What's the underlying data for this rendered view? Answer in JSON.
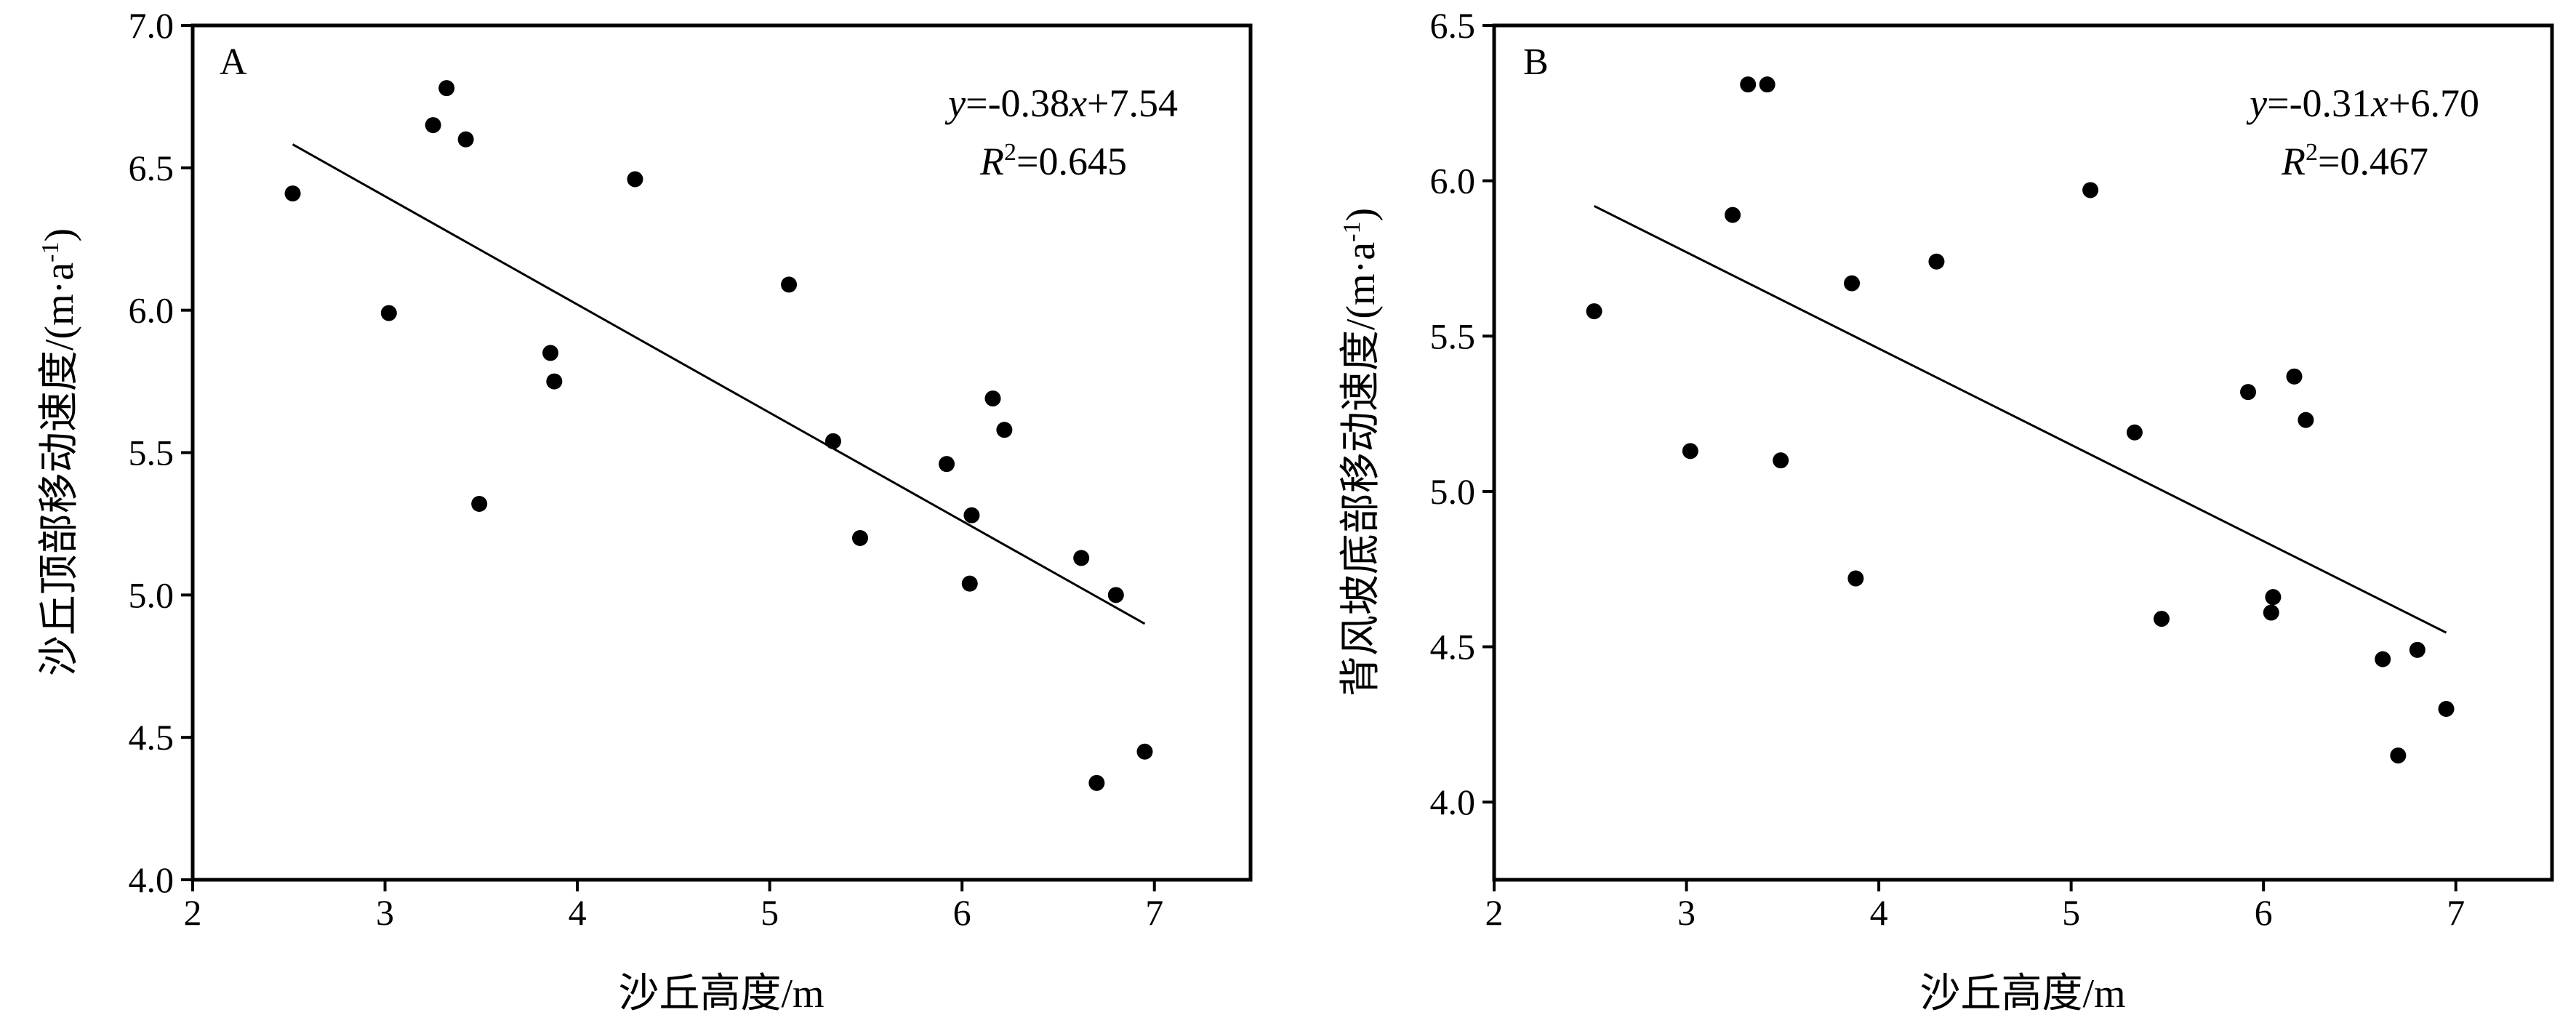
{
  "chart_data": [
    {
      "type": "scatter",
      "panel_label": "A",
      "xlabel": "沙丘高度/m",
      "ylabel_main": "沙丘顶部移动速度/(m·a",
      "ylabel_sup": "-1",
      "ylabel_end": ")",
      "xlim": [
        2,
        7.5
      ],
      "ylim": [
        4.0,
        7.0
      ],
      "xticks": [
        "2",
        "3",
        "4",
        "5",
        "6",
        "7"
      ],
      "yticks": [
        "4.0",
        "4.5",
        "5.0",
        "5.5",
        "6.0",
        "6.5",
        "7.0"
      ],
      "x": [
        2.52,
        3.02,
        3.25,
        3.32,
        3.42,
        3.49,
        3.86,
        3.88,
        4.3,
        5.1,
        5.33,
        5.47,
        5.92,
        6.04,
        6.05,
        6.16,
        6.22,
        6.62,
        6.7,
        6.8,
        6.95
      ],
      "y": [
        6.41,
        5.99,
        6.65,
        6.78,
        6.6,
        5.32,
        5.85,
        5.75,
        6.46,
        6.09,
        5.54,
        5.2,
        5.46,
        5.04,
        5.28,
        5.69,
        5.58,
        5.13,
        4.34,
        5.0,
        4.45
      ],
      "fit": {
        "slope": -0.38,
        "intercept": 7.54,
        "x_range": [
          2.52,
          6.95
        ]
      },
      "equation": {
        "y_var": "y",
        "eq_mid": "=-0.38",
        "x_var": "x",
        "eq_end": "+7.54"
      },
      "r2": {
        "r_var": "R",
        "sup": "2",
        "value_text": "=0.645"
      },
      "grid": false,
      "marker_color": "#000000"
    },
    {
      "type": "scatter",
      "panel_label": "B",
      "xlabel": "沙丘高度/m",
      "ylabel_main": "背风坡底部移动速度/(m·a",
      "ylabel_sup": "-1",
      "ylabel_end": ")",
      "xlim": [
        2,
        7.5
      ],
      "ylim": [
        3.75,
        6.5
      ],
      "xticks": [
        "2",
        "3",
        "4",
        "5",
        "6",
        "7"
      ],
      "yticks": [
        "4.0",
        "4.5",
        "5.0",
        "5.5",
        "6.0",
        "6.5"
      ],
      "x": [
        2.52,
        3.02,
        3.24,
        3.32,
        3.42,
        3.49,
        3.86,
        3.88,
        4.3,
        5.1,
        5.33,
        5.47,
        5.92,
        6.04,
        6.05,
        6.16,
        6.22,
        6.62,
        6.7,
        6.8,
        6.95
      ],
      "y": [
        5.58,
        5.13,
        5.89,
        6.31,
        6.31,
        5.1,
        5.67,
        4.72,
        5.74,
        5.97,
        5.19,
        4.59,
        5.32,
        4.61,
        4.66,
        5.37,
        5.23,
        4.46,
        4.15,
        4.49,
        4.3
      ],
      "fit": {
        "slope": -0.31,
        "intercept": 6.7,
        "x_range": [
          2.52,
          6.95
        ]
      },
      "equation": {
        "y_var": "y",
        "eq_mid": "=-0.31",
        "x_var": "x",
        "eq_end": "+6.70"
      },
      "r2": {
        "r_var": "R",
        "sup": "2",
        "value_text": "=0.467"
      },
      "grid": false,
      "marker_color": "#000000"
    }
  ]
}
